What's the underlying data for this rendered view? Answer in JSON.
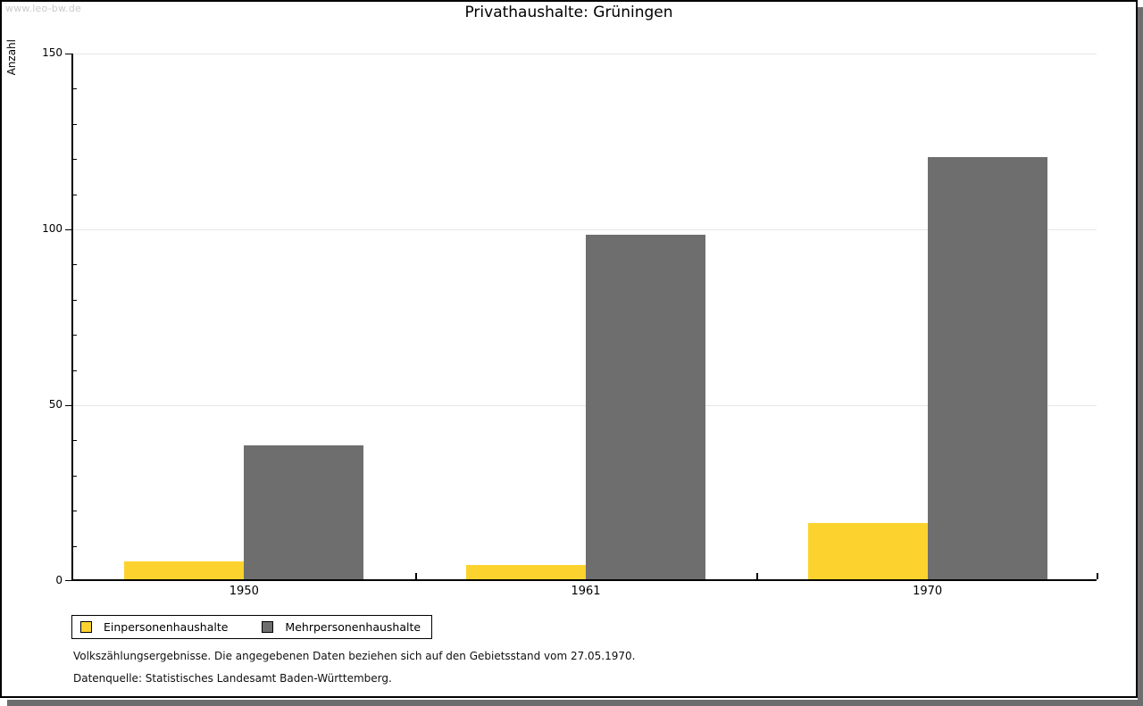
{
  "page": {
    "watermark": "www.leo-bw.de"
  },
  "chart_data": {
    "type": "bar",
    "title": "Privathaushalte: Grüningen",
    "xlabel": "",
    "ylabel": "Anzahl",
    "categories": [
      "1950",
      "1961",
      "1970"
    ],
    "series": [
      {
        "name": "Einpersonenhaushalte",
        "color": "#fcd32e",
        "values": [
          5,
          4,
          16
        ]
      },
      {
        "name": "Mehrpersonenhaushalte",
        "color": "#6e6e6e",
        "values": [
          38,
          98,
          120
        ]
      }
    ],
    "ylim": [
      0,
      150
    ],
    "yticks": [
      0,
      50,
      100,
      150
    ],
    "minor_tick_step": 10,
    "grid": true,
    "legend_position": "bottom-left"
  },
  "footer": {
    "line1": "Volkszählungsergebnisse. Die angegebenen Daten beziehen sich auf den Gebietsstand vom 27.05.1970.",
    "line2": "Datenquelle: Statistisches Landesamt Baden-Württemberg."
  },
  "colors": {
    "frame_border": "#000000",
    "drop_shadow": "#6e6e6e",
    "gridline": "#e6e6e6",
    "watermark": "#c9c9c9",
    "bar_yellow": "#fcd32e",
    "bar_gray": "#6e6e6e"
  }
}
